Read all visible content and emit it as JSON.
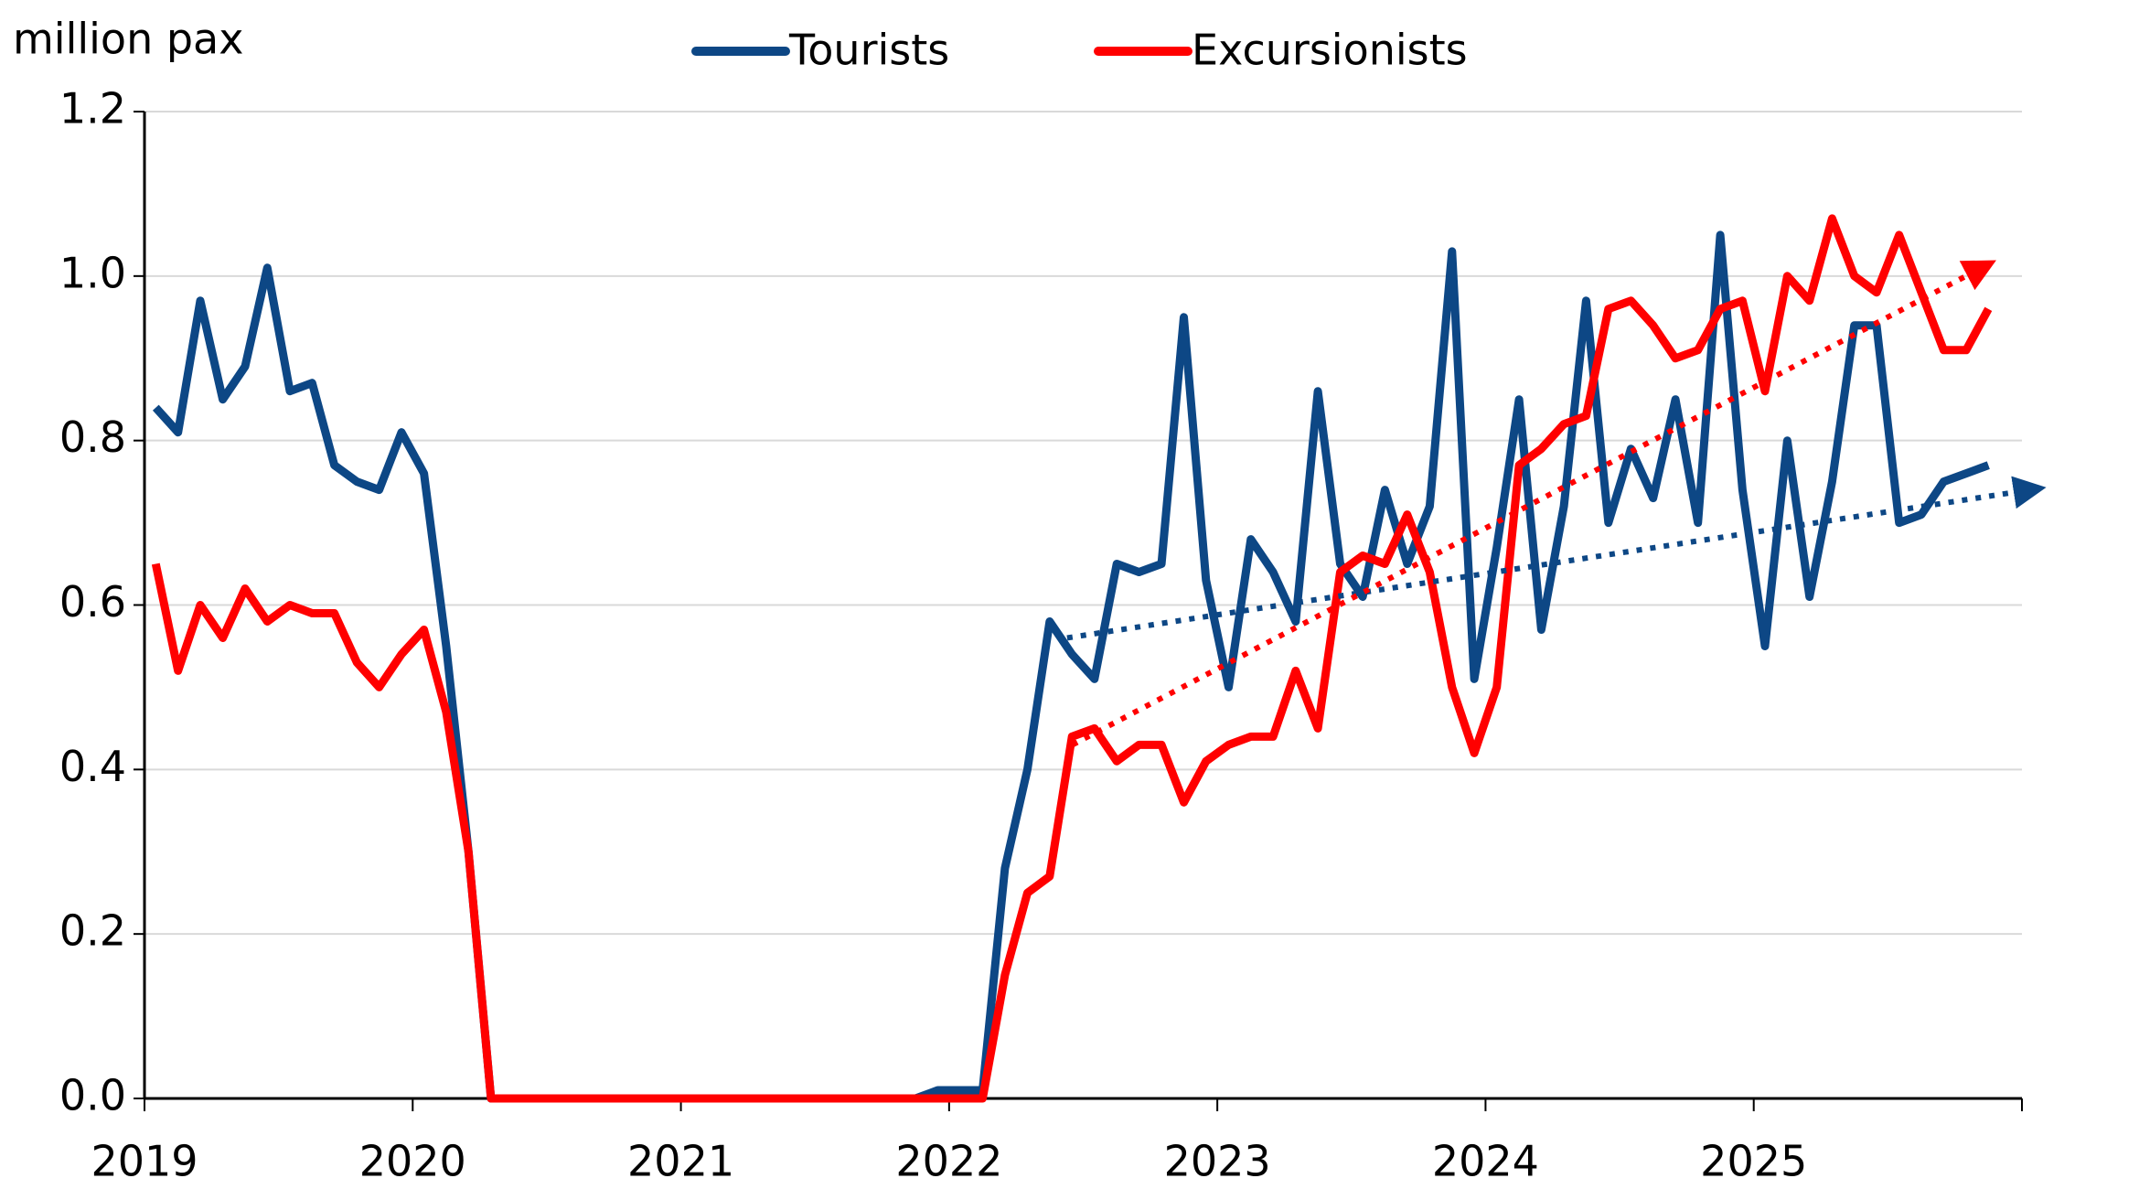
{
  "chart_data": {
    "type": "line",
    "y_label": "million pax",
    "x": [
      2019.042,
      2019.125,
      2019.208,
      2019.292,
      2019.375,
      2019.458,
      2019.542,
      2019.625,
      2019.708,
      2019.792,
      2019.875,
      2019.958,
      2020.042,
      2020.125,
      2020.208,
      2020.292,
      2020.375,
      2020.458,
      2020.542,
      2020.625,
      2020.708,
      2020.792,
      2020.875,
      2020.958,
      2021.042,
      2021.125,
      2021.208,
      2021.292,
      2021.375,
      2021.458,
      2021.542,
      2021.625,
      2021.708,
      2021.792,
      2021.875,
      2021.958,
      2022.042,
      2022.125,
      2022.208,
      2022.292,
      2022.375,
      2022.458,
      2022.542,
      2022.625,
      2022.708,
      2022.792,
      2022.875,
      2022.958,
      2023.042,
      2023.125,
      2023.208,
      2023.292,
      2023.375,
      2023.458,
      2023.542,
      2023.625,
      2023.708,
      2023.792,
      2023.875,
      2023.958,
      2024.042,
      2024.125,
      2024.208,
      2024.292,
      2024.375,
      2024.458,
      2024.542,
      2024.625,
      2024.708,
      2024.792,
      2024.875,
      2024.958,
      2025.042,
      2025.125,
      2025.208,
      2025.292,
      2025.375,
      2025.458,
      2025.542,
      2025.625,
      2025.708,
      2025.792,
      2025.875
    ],
    "series": [
      {
        "name": "Tourists",
        "color": "#0d4785",
        "values": [
          0.84,
          0.81,
          0.97,
          0.85,
          0.89,
          1.01,
          0.86,
          0.87,
          0.77,
          0.75,
          0.74,
          0.81,
          0.76,
          0.55,
          0.3,
          0,
          0,
          0,
          0,
          0,
          0,
          0,
          0,
          0,
          0,
          0,
          0,
          0,
          0,
          0,
          0,
          0,
          0,
          0,
          0,
          0.01,
          0.01,
          0.01,
          0.28,
          0.4,
          0.58,
          0.54,
          0.51,
          0.65,
          0.64,
          0.65,
          0.95,
          0.63,
          0.5,
          0.68,
          0.64,
          0.58,
          0.86,
          0.65,
          0.61,
          0.74,
          0.65,
          0.72,
          1.03,
          0.51,
          0.67,
          0.85,
          0.57,
          0.72,
          0.97,
          0.7,
          0.79,
          0.73,
          0.85,
          0.7,
          1.05,
          0.74,
          0.55,
          0.8,
          0.61,
          0.75,
          0.94,
          0.94,
          0.7,
          0.71,
          0.75,
          0.76,
          0.77
        ]
      },
      {
        "name": "Excursionists",
        "color": "#ff0000",
        "values": [
          0.65,
          0.52,
          0.6,
          0.56,
          0.62,
          0.58,
          0.6,
          0.59,
          0.59,
          0.53,
          0.5,
          0.54,
          0.57,
          0.47,
          0.3,
          0,
          0,
          0,
          0,
          0,
          0,
          0,
          0,
          0,
          0,
          0,
          0,
          0,
          0,
          0,
          0,
          0,
          0,
          0,
          0,
          0,
          0,
          0,
          0.15,
          0.25,
          0.27,
          0.44,
          0.45,
          0.41,
          0.43,
          0.43,
          0.36,
          0.41,
          0.43,
          0.44,
          0.44,
          0.52,
          0.45,
          0.64,
          0.66,
          0.65,
          0.71,
          0.64,
          0.5,
          0.42,
          0.5,
          0.77,
          0.79,
          0.82,
          0.83,
          0.96,
          0.97,
          0.94,
          0.9,
          0.91,
          0.96,
          0.97,
          0.86,
          1.0,
          0.97,
          1.07,
          1.0,
          0.98,
          1.05,
          0.98,
          0.91,
          0.91,
          0.96
        ]
      }
    ],
    "trendlines": [
      {
        "color": "#0d4785",
        "x": [
          2022.44,
          2026.03
        ],
        "values": [
          0.56,
          0.74
        ]
      },
      {
        "color": "#ff0000",
        "x": [
          2022.46,
          2025.85
        ],
        "values": [
          0.43,
          1.01
        ]
      }
    ],
    "xlim": [
      2019,
      2026
    ],
    "xticks": [
      2019,
      2020,
      2021,
      2022,
      2023,
      2024,
      2025
    ],
    "ylim": [
      0,
      1.2
    ],
    "yticks": [
      {
        "value": 0,
        "label": "0.0"
      },
      {
        "value": 0.2,
        "label": "0.2"
      },
      {
        "value": 0.4,
        "label": "0.4"
      },
      {
        "value": 0.6,
        "label": "0.6"
      },
      {
        "value": 0.8,
        "label": "0.8"
      },
      {
        "value": 1,
        "label": "1.0"
      },
      {
        "value": 1.2,
        "label": "1.2"
      }
    ],
    "grid": true
  }
}
